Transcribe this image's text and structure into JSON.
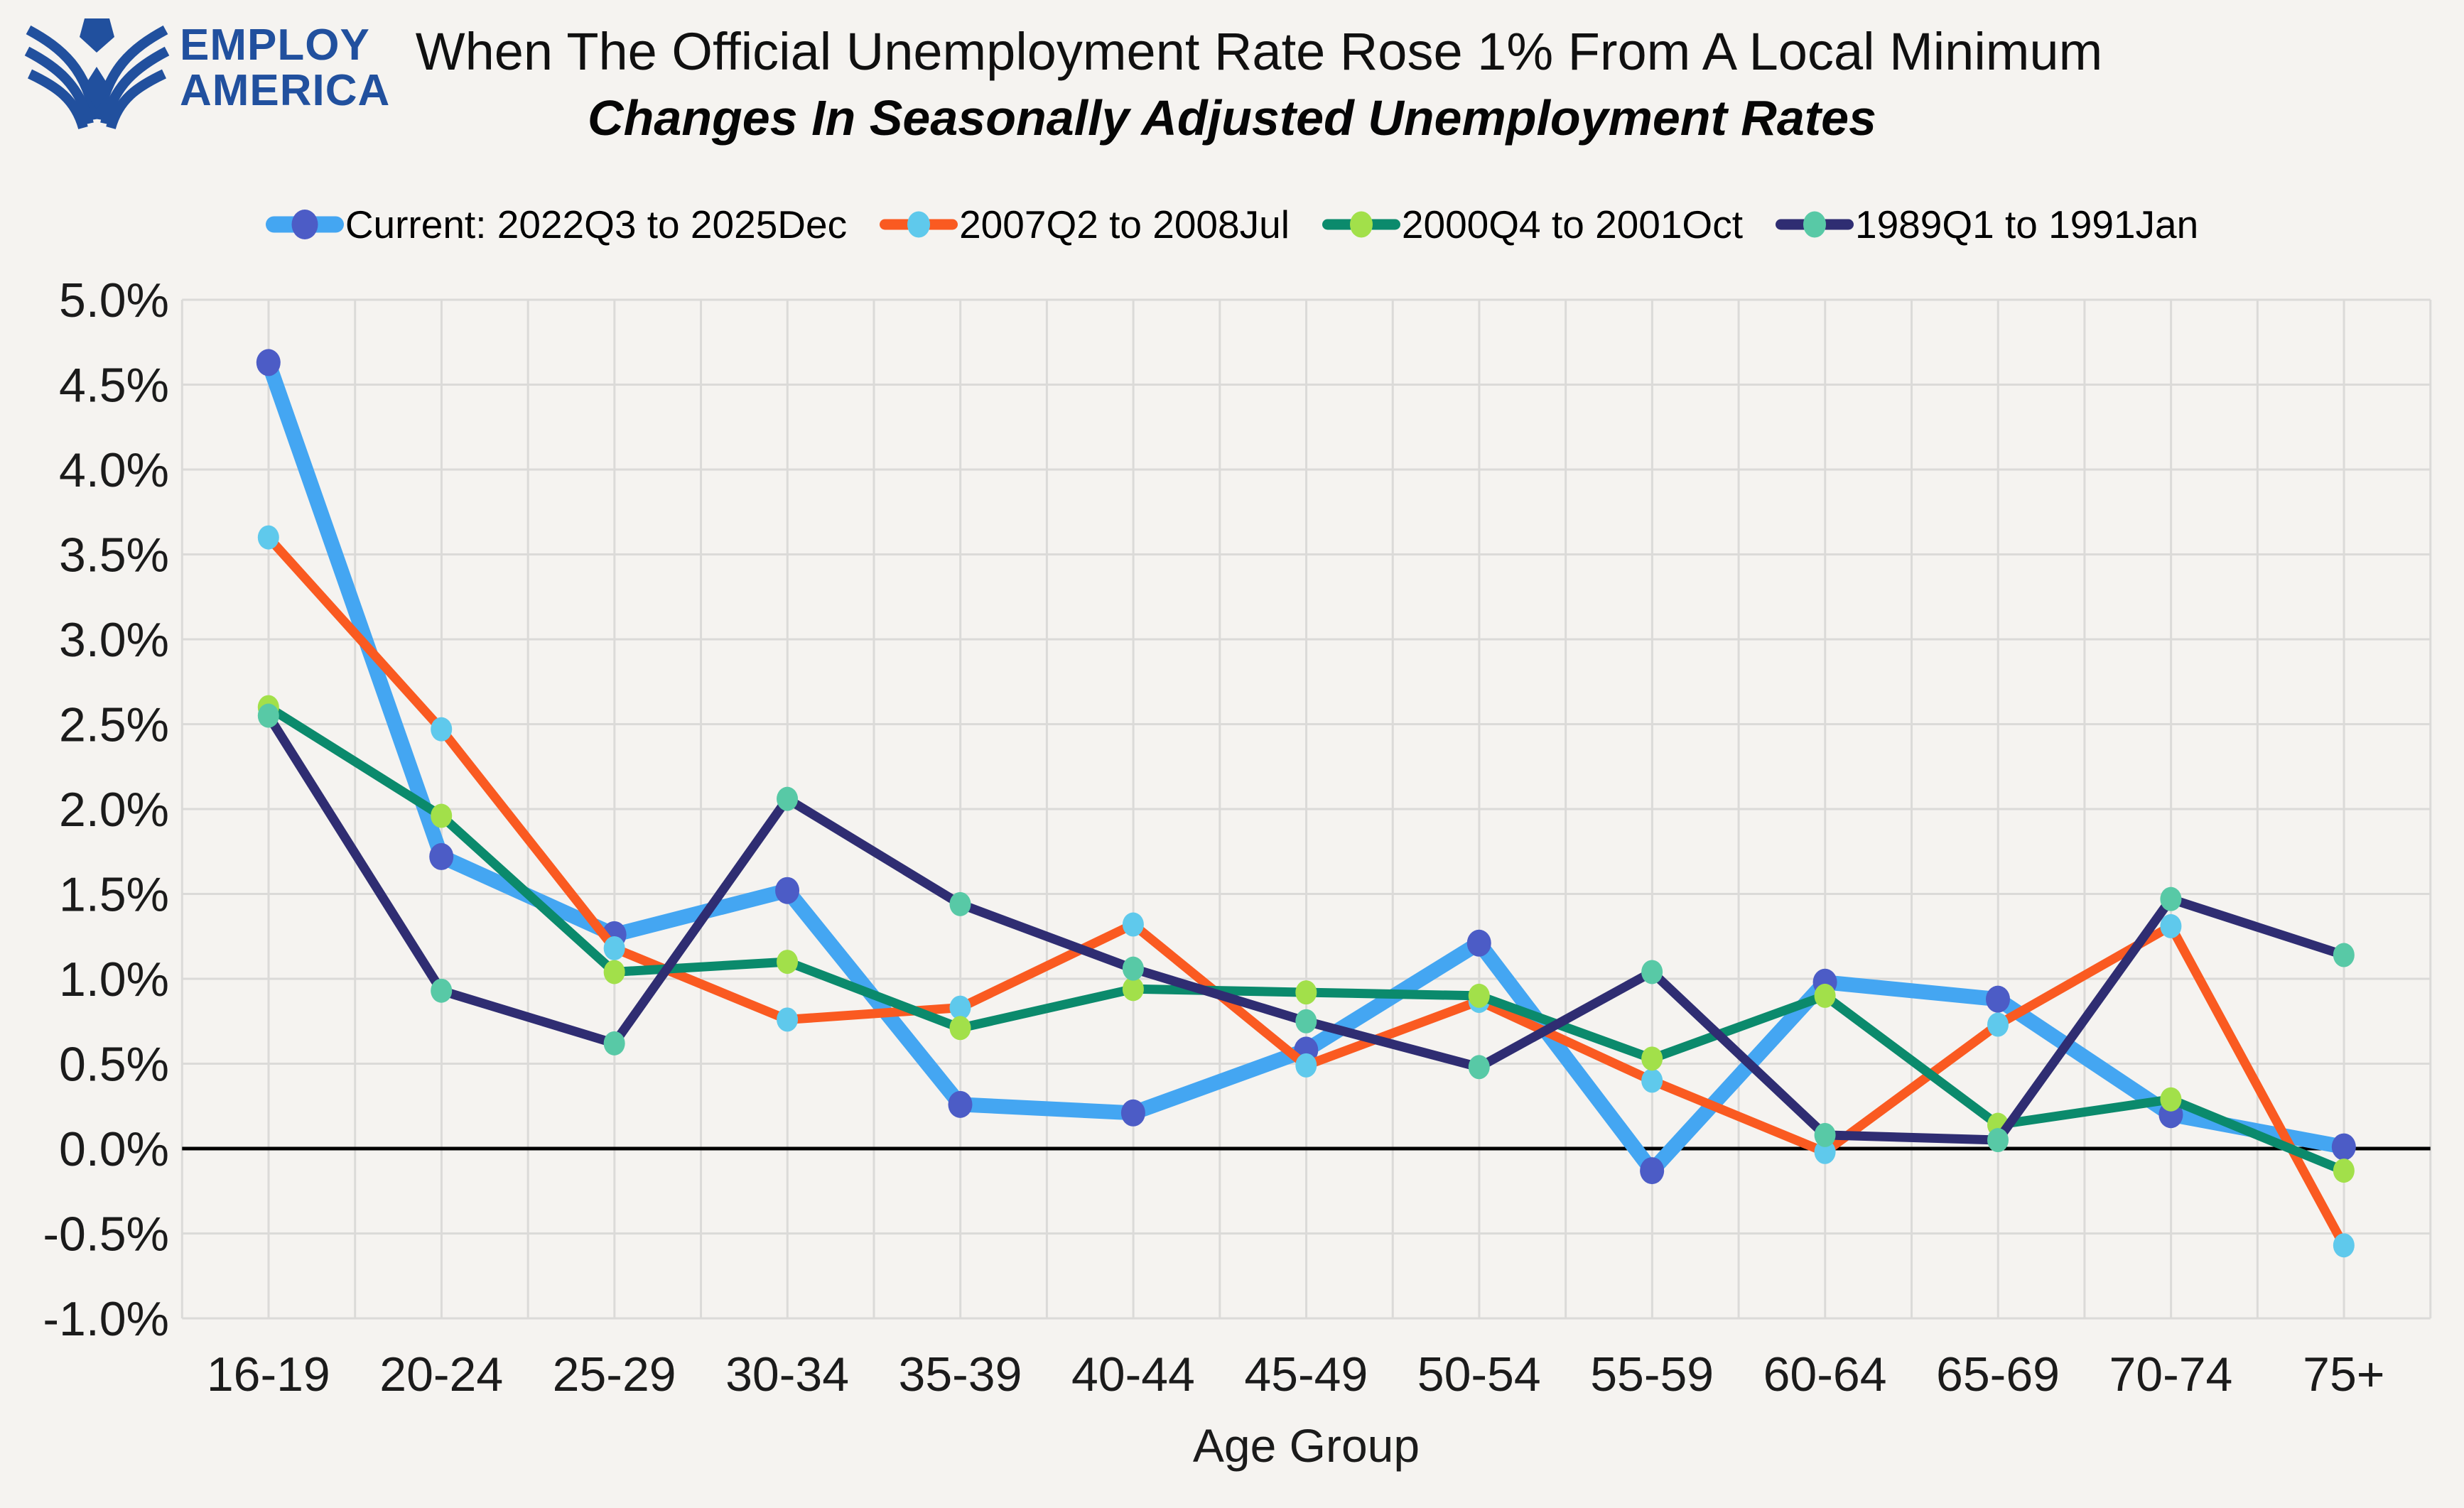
{
  "header": {
    "logo_line1": "EMPLOY",
    "logo_line2": "AMERICA",
    "title": "When The Official Unemployment Rate Rose 1% From A Local Minimum",
    "subtitle": "Changes In Seasonally Adjusted Unemployment Rates"
  },
  "colors": {
    "background": "#F5F3F0",
    "gridline": "#DBDAD8",
    "zero_line": "#000000",
    "tick_text": "#1B1B1B",
    "logo_blue": "#21509E"
  },
  "chart_data": {
    "type": "line",
    "title": "When The Official Unemployment Rate Rose 1% From A Local Minimum",
    "subtitle": "Changes In Seasonally Adjusted Unemployment Rates",
    "xlabel": "Age Group",
    "ylabel": "",
    "ylim": [
      -1.0,
      5.0
    ],
    "ytick_step": 0.5,
    "grid": true,
    "legend_position": "top",
    "categories": [
      "16-19",
      "20-24",
      "25-29",
      "30-34",
      "35-39",
      "40-44",
      "45-49",
      "50-54",
      "55-59",
      "60-64",
      "65-69",
      "70-74",
      "75+"
    ],
    "y_tick_labels": [
      "5.0%",
      "4.5%",
      "4.0%",
      "3.5%",
      "3.0%",
      "2.5%",
      "2.0%",
      "1.5%",
      "1.0%",
      "0.5%",
      "0.0%",
      "-0.5%",
      "-1.0%"
    ],
    "series": [
      {
        "name": "Current: 2022Q3 to 2025Dec",
        "line_color": "#44A6F2",
        "marker_color": "#4C5CC6",
        "line_width": 21,
        "marker_rx": 17,
        "marker_ry": 19,
        "values": [
          4.63,
          1.72,
          1.26,
          1.52,
          0.26,
          0.21,
          0.58,
          1.21,
          -0.13,
          0.98,
          0.88,
          0.2,
          0.01
        ]
      },
      {
        "name": "2007Q2 to 2008Jul",
        "line_color": "#FA5A21",
        "marker_color": "#5FC9EC",
        "line_width": 13,
        "marker_rx": 15,
        "marker_ry": 17,
        "values": [
          3.6,
          2.47,
          1.18,
          0.76,
          0.83,
          1.32,
          0.49,
          0.87,
          0.4,
          -0.02,
          0.73,
          1.31,
          -0.57
        ]
      },
      {
        "name": "2000Q4 to 2001Oct",
        "line_color": "#0B8A6C",
        "marker_color": "#A2E04A",
        "line_width": 13,
        "marker_rx": 15,
        "marker_ry": 17,
        "values": [
          2.6,
          1.96,
          1.04,
          1.1,
          0.71,
          0.94,
          0.92,
          0.9,
          0.53,
          0.9,
          0.14,
          0.29,
          -0.13
        ]
      },
      {
        "name": "1989Q1 to 1991Jan",
        "line_color": "#2F2D72",
        "marker_color": "#58C9A6",
        "line_width": 13,
        "marker_rx": 15,
        "marker_ry": 17,
        "values": [
          2.55,
          0.93,
          0.62,
          2.06,
          1.44,
          1.06,
          0.75,
          0.48,
          1.04,
          0.08,
          0.05,
          1.47,
          1.14
        ]
      }
    ]
  }
}
